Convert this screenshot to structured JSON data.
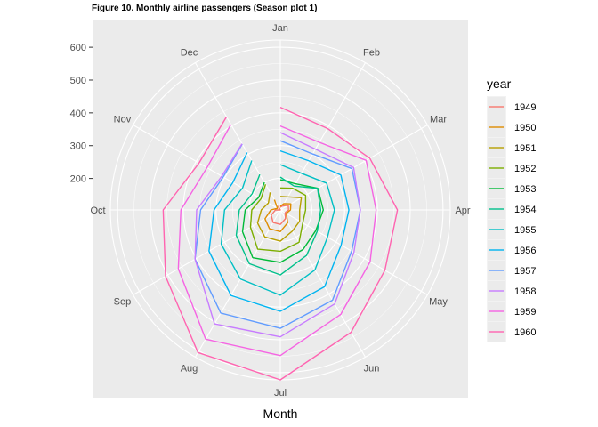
{
  "chart_data": {
    "type": "line",
    "coord": "polar",
    "title": "Figure 10. Monthly airline passengers (Season plot 1)",
    "xlabel": "Month",
    "ylabel": "",
    "categories": [
      "Jan",
      "Feb",
      "Mar",
      "Apr",
      "May",
      "Jun",
      "Jul",
      "Aug",
      "Sep",
      "Oct",
      "Nov",
      "Dec"
    ],
    "radial_ticks": [
      200,
      300,
      400,
      500,
      600
    ],
    "rlim": [
      104,
      622
    ],
    "grid": true,
    "legend": {
      "title": "year",
      "position": "right"
    },
    "series": [
      {
        "name": "1949",
        "color": "#F8766D",
        "values": [
          112,
          118,
          132,
          129,
          121,
          135,
          148,
          148,
          136,
          119,
          104,
          118
        ]
      },
      {
        "name": "1950",
        "color": "#DE8C00",
        "values": [
          115,
          126,
          141,
          135,
          125,
          149,
          170,
          170,
          158,
          133,
          114,
          140
        ]
      },
      {
        "name": "1951",
        "color": "#B79F00",
        "values": [
          145,
          150,
          178,
          163,
          172,
          178,
          199,
          199,
          184,
          162,
          146,
          166
        ]
      },
      {
        "name": "1952",
        "color": "#7CAE00",
        "values": [
          171,
          180,
          193,
          181,
          183,
          218,
          230,
          242,
          209,
          191,
          172,
          194
        ]
      },
      {
        "name": "1953",
        "color": "#00BA38",
        "values": [
          196,
          196,
          236,
          235,
          229,
          243,
          264,
          272,
          237,
          211,
          180,
          201
        ]
      },
      {
        "name": "1954",
        "color": "#00C08B",
        "values": [
          204,
          188,
          235,
          227,
          234,
          264,
          302,
          293,
          259,
          229,
          203,
          229
        ]
      },
      {
        "name": "1955",
        "color": "#00BFC4",
        "values": [
          242,
          233,
          267,
          269,
          270,
          315,
          364,
          347,
          312,
          274,
          237,
          278
        ]
      },
      {
        "name": "1956",
        "color": "#00B4F0",
        "values": [
          284,
          277,
          317,
          313,
          318,
          374,
          413,
          405,
          355,
          306,
          271,
          306
        ]
      },
      {
        "name": "1957",
        "color": "#619CFF",
        "values": [
          315,
          301,
          356,
          348,
          355,
          422,
          465,
          467,
          404,
          347,
          305,
          336
        ]
      },
      {
        "name": "1958",
        "color": "#C77CFF",
        "values": [
          340,
          318,
          362,
          348,
          363,
          435,
          491,
          505,
          404,
          359,
          310,
          337
        ]
      },
      {
        "name": "1959",
        "color": "#F564E3",
        "values": [
          360,
          342,
          406,
          396,
          420,
          472,
          548,
          559,
          463,
          407,
          362,
          405
        ]
      },
      {
        "name": "1960",
        "color": "#FF64B0",
        "values": [
          417,
          391,
          419,
          461,
          472,
          535,
          622,
          606,
          508,
          461,
          390,
          432
        ]
      }
    ]
  }
}
